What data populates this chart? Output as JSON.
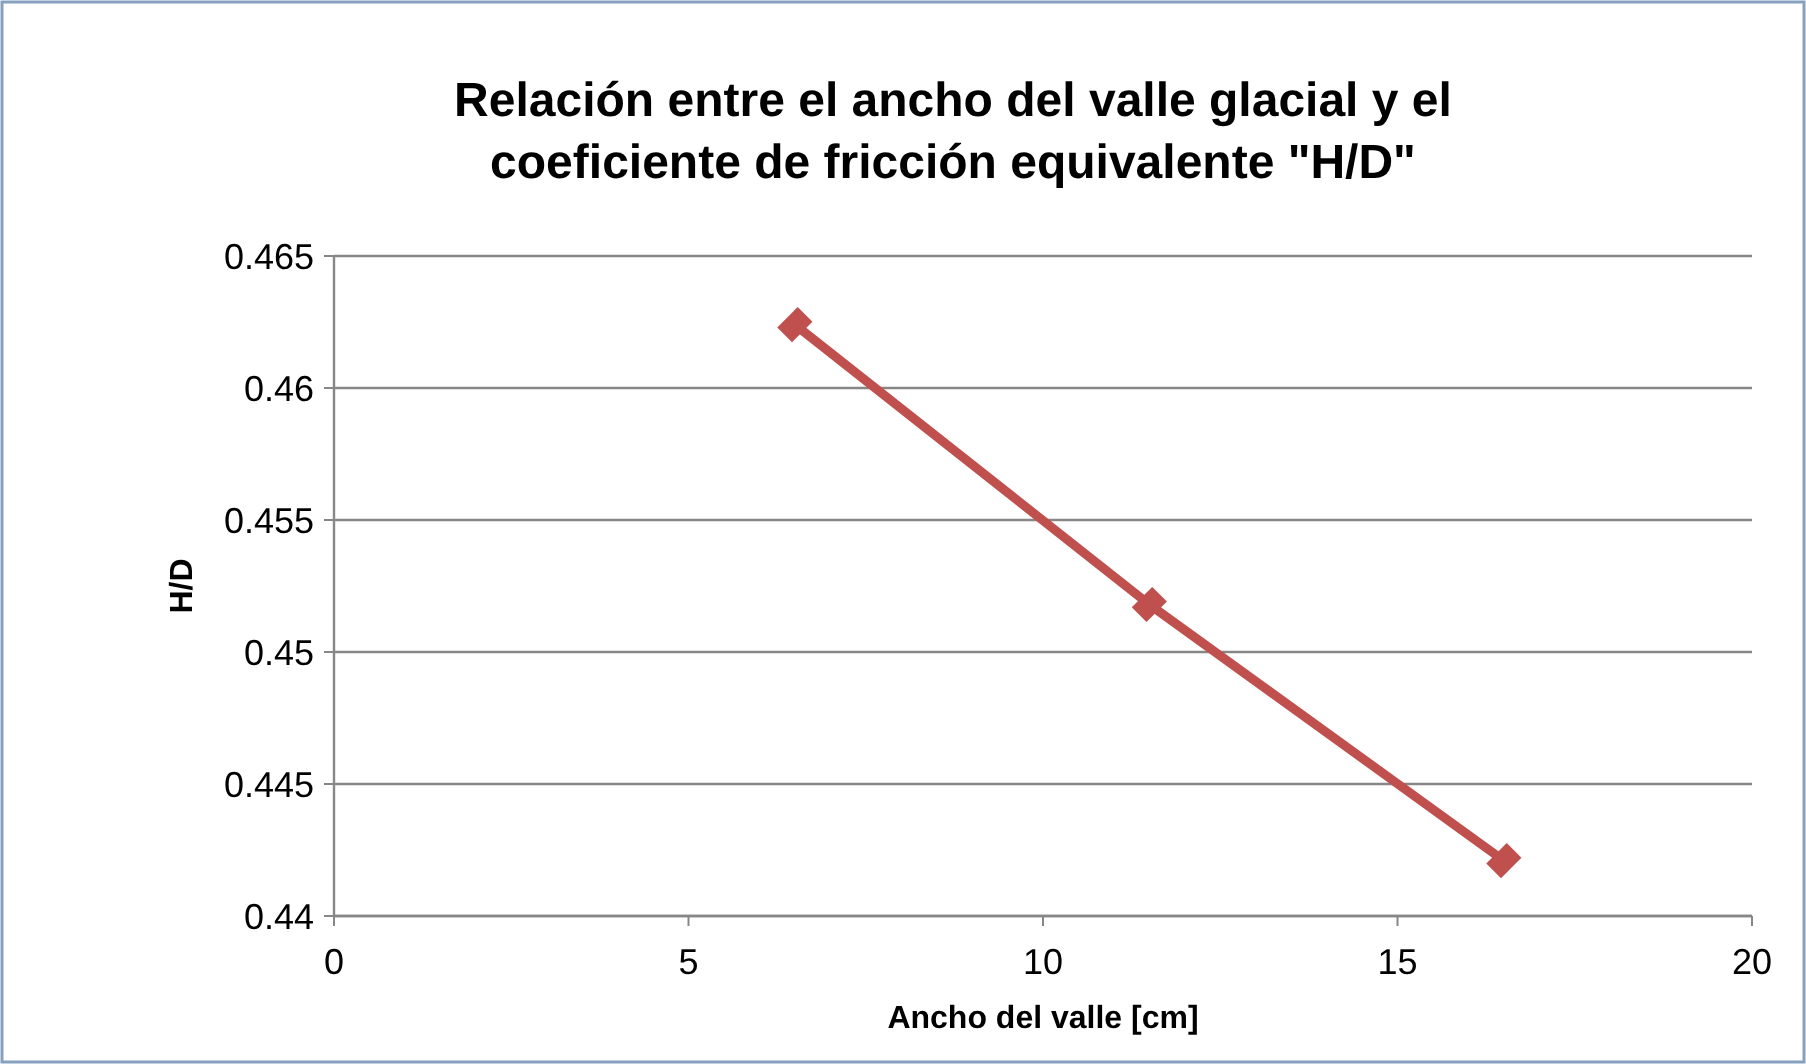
{
  "chart_data": {
    "type": "line",
    "title": "Relación entre el ancho del valle glacial y el coeficiente de fricción equivalente \"H/D\"",
    "xlabel": "Ancho del valle [cm]",
    "ylabel": "H/D",
    "x": [
      6.5,
      11.5,
      16.5
    ],
    "series": [
      {
        "color": "#c0504d",
        "values": [
          0.4624,
          0.4518,
          0.4421
        ]
      }
    ],
    "xlim": [
      0,
      20
    ],
    "xticks": [
      0,
      5,
      10,
      15,
      20
    ],
    "ylim": [
      0.44,
      0.465
    ],
    "yticks": [
      0.44,
      0.445,
      0.45,
      0.455,
      0.46,
      0.465
    ],
    "grid": "y",
    "marker": "diamond"
  }
}
